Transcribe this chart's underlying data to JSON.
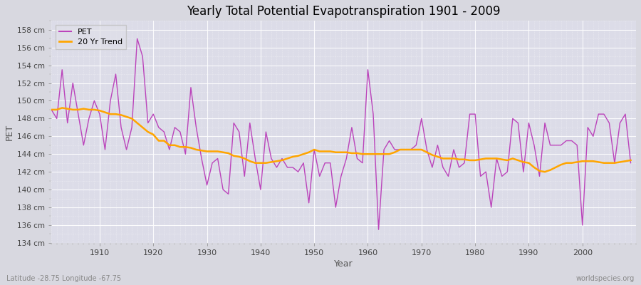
{
  "title": "Yearly Total Potential Evapotranspiration 1901 - 2009",
  "xlabel": "Year",
  "ylabel": "PET",
  "subtitle": "Latitude -28.75 Longitude -67.75",
  "watermark": "worldspecies.org",
  "ylim": [
    134,
    159
  ],
  "ytick_step": 2,
  "pet_color": "#BB44BB",
  "trend_color": "#FFA500",
  "fig_bg": "#D8D8E0",
  "plot_bg": "#DCDCE8",
  "years": [
    1901,
    1902,
    1903,
    1904,
    1905,
    1906,
    1907,
    1908,
    1909,
    1910,
    1911,
    1912,
    1913,
    1914,
    1915,
    1916,
    1917,
    1918,
    1919,
    1920,
    1921,
    1922,
    1923,
    1924,
    1925,
    1926,
    1927,
    1928,
    1929,
    1930,
    1931,
    1932,
    1933,
    1934,
    1935,
    1936,
    1937,
    1938,
    1939,
    1940,
    1941,
    1942,
    1943,
    1944,
    1945,
    1946,
    1947,
    1948,
    1949,
    1950,
    1951,
    1952,
    1953,
    1954,
    1955,
    1956,
    1957,
    1958,
    1959,
    1960,
    1961,
    1962,
    1963,
    1964,
    1965,
    1966,
    1967,
    1968,
    1969,
    1970,
    1971,
    1972,
    1973,
    1974,
    1975,
    1976,
    1977,
    1978,
    1979,
    1980,
    1981,
    1982,
    1983,
    1984,
    1985,
    1986,
    1987,
    1988,
    1989,
    1990,
    1991,
    1992,
    1993,
    1994,
    1995,
    1996,
    1997,
    1998,
    1999,
    2000,
    2001,
    2002,
    2003,
    2004,
    2005,
    2006,
    2007,
    2008,
    2009
  ],
  "pet_values": [
    149.0,
    148.0,
    153.5,
    147.5,
    152.0,
    148.5,
    145.0,
    148.0,
    150.0,
    148.5,
    144.5,
    150.0,
    153.0,
    147.0,
    144.5,
    147.0,
    157.0,
    155.0,
    147.5,
    148.5,
    147.0,
    146.5,
    144.5,
    147.0,
    146.5,
    144.0,
    151.5,
    147.0,
    143.5,
    140.5,
    143.0,
    143.5,
    140.0,
    139.5,
    147.5,
    146.5,
    141.5,
    147.5,
    143.5,
    140.0,
    146.5,
    143.5,
    142.5,
    143.5,
    142.5,
    142.5,
    142.0,
    143.0,
    138.5,
    144.5,
    141.5,
    143.0,
    143.0,
    138.0,
    141.5,
    143.5,
    147.0,
    143.5,
    143.0,
    153.5,
    148.5,
    135.5,
    144.5,
    145.5,
    144.5,
    144.5,
    144.5,
    144.5,
    145.0,
    148.0,
    144.5,
    142.5,
    145.0,
    142.5,
    141.5,
    144.5,
    142.5,
    143.0,
    148.5,
    148.5,
    141.5,
    142.0,
    138.0,
    143.5,
    141.5,
    142.0,
    148.0,
    147.5,
    142.0,
    147.5,
    145.0,
    141.5,
    147.5,
    145.0,
    145.0,
    145.0,
    145.5,
    145.5,
    145.0,
    136.0,
    147.0,
    146.0,
    148.5,
    148.5,
    147.5,
    143.0,
    147.5,
    148.5,
    143.0
  ],
  "trend_values": [
    149.0,
    149.0,
    149.2,
    149.1,
    149.0,
    149.0,
    149.1,
    149.0,
    149.0,
    148.9,
    148.7,
    148.5,
    148.5,
    148.4,
    148.2,
    148.0,
    147.5,
    147.0,
    146.5,
    146.2,
    145.5,
    145.5,
    145.0,
    145.0,
    144.8,
    144.8,
    144.7,
    144.5,
    144.4,
    144.3,
    144.3,
    144.3,
    144.2,
    144.1,
    143.8,
    143.7,
    143.5,
    143.2,
    143.0,
    143.0,
    143.0,
    143.1,
    143.2,
    143.3,
    143.5,
    143.7,
    143.8,
    144.0,
    144.2,
    144.5,
    144.3,
    144.3,
    144.3,
    144.2,
    144.2,
    144.2,
    144.1,
    144.1,
    144.0,
    144.0,
    144.0,
    144.0,
    144.0,
    144.0,
    144.2,
    144.5,
    144.5,
    144.5,
    144.5,
    144.5,
    144.2,
    143.9,
    143.7,
    143.5,
    143.5,
    143.5,
    143.4,
    143.4,
    143.3,
    143.3,
    143.4,
    143.5,
    143.5,
    143.5,
    143.4,
    143.3,
    143.5,
    143.3,
    143.1,
    143.0,
    142.5,
    142.1,
    142.0,
    142.2,
    142.5,
    142.8,
    143.0,
    143.0,
    143.1,
    143.2,
    143.2,
    143.2,
    143.1,
    143.0,
    143.0,
    143.0,
    143.1,
    143.2,
    143.3
  ]
}
